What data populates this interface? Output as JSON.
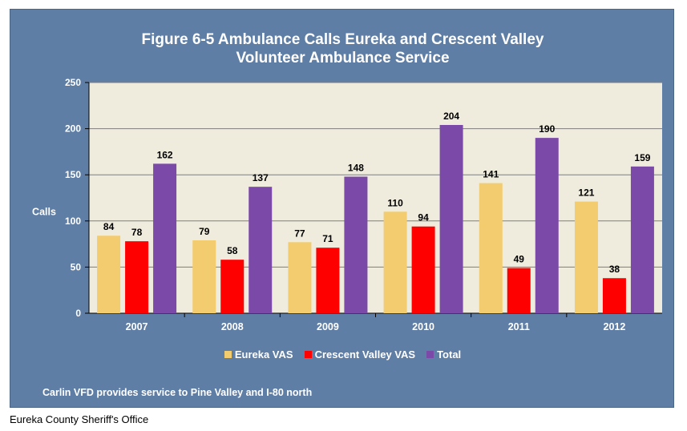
{
  "chart_data": {
    "type": "bar",
    "title": "Figure 6-5 Ambulance Calls Eureka and Crescent Valley Volunteer Ambulance Service",
    "title_lines": [
      "Figure 6-5 Ambulance Calls Eureka and Crescent Valley",
      "Volunteer Ambulance Service"
    ],
    "xlabel": "",
    "ylabel": "Calls",
    "ylim": [
      0,
      250
    ],
    "yticks": [
      0,
      50,
      100,
      150,
      200,
      250
    ],
    "grid": true,
    "legend_position": "bottom",
    "categories": [
      "2007",
      "2008",
      "2009",
      "2010",
      "2011",
      "2012"
    ],
    "series": [
      {
        "name": "Eureka VAS",
        "color": "#f2cc6e",
        "values": [
          84,
          79,
          77,
          110,
          141,
          121
        ]
      },
      {
        "name": "Crescent Valley VAS",
        "color": "#ff0000",
        "values": [
          78,
          58,
          71,
          94,
          49,
          38
        ]
      },
      {
        "name": "Total",
        "color": "#7b4aa8",
        "values": [
          162,
          137,
          148,
          204,
          190,
          159
        ]
      }
    ]
  },
  "note": "Carlin VFD provides service to Pine Valley and I-80 north",
  "source": "Eureka County Sheriff's Office",
  "colors": {
    "panel_background": "#5f7ea5",
    "plot_background": "#efecdd",
    "gridline": "#7f7f7f"
  }
}
